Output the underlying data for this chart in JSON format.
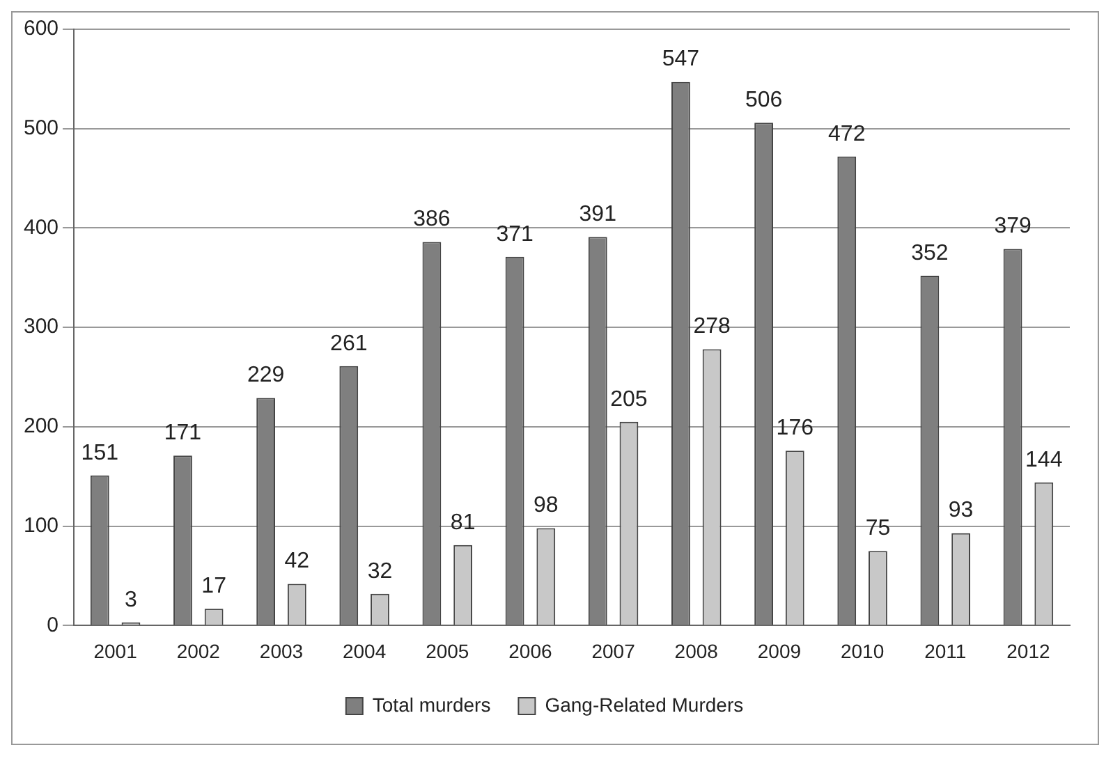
{
  "chart_data": {
    "type": "bar",
    "categories": [
      "2001",
      "2002",
      "2003",
      "2004",
      "2005",
      "2006",
      "2007",
      "2008",
      "2009",
      "2010",
      "2011",
      "2012"
    ],
    "series": [
      {
        "name": "Total murders",
        "color": "#7f7f7f",
        "values": [
          151,
          171,
          229,
          261,
          386,
          371,
          391,
          547,
          506,
          472,
          352,
          379
        ]
      },
      {
        "name": "Gang-Related Murders",
        "color": "#c8c8c8",
        "values": [
          3,
          17,
          42,
          32,
          81,
          98,
          205,
          278,
          176,
          75,
          93,
          144
        ]
      }
    ],
    "ylim": [
      0,
      600
    ],
    "yticks": [
      0,
      100,
      200,
      300,
      400,
      500,
      600
    ],
    "grid": "y",
    "legend": "bottom",
    "data_labels": true
  }
}
